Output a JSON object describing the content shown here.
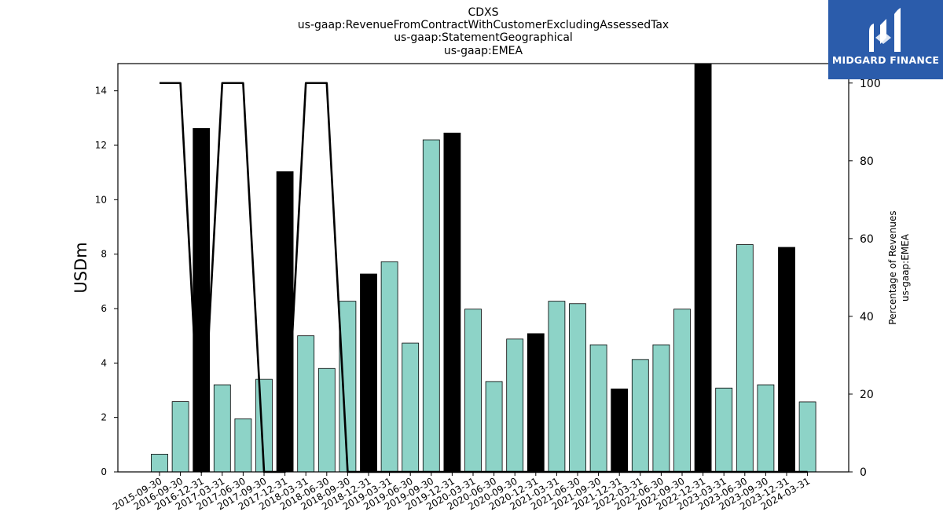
{
  "header": {
    "title_lines": [
      "CDXS",
      "us-gaap:RevenueFromContractWithCustomerExcludingAssessedTax",
      "us-gaap:StatementGeographical",
      "us-gaap:EMEA"
    ]
  },
  "logo": {
    "text": "MIDGARD FINANCE",
    "background": "#2b5cab",
    "icon": "midgard-logo-icon"
  },
  "chart_data": {
    "type": "bar",
    "title": "CDXS\nus-gaap:RevenueFromContractWithCustomerExcludingAssessedTax\nus-gaap:StatementGeographical\nus-gaap:EMEA",
    "ylabel": "USDm",
    "y2label": "Percentage of Revenues\nus-gaap:EMEA",
    "ylim": [
      0,
      15
    ],
    "y2lim": [
      0,
      105
    ],
    "yticks": [
      0,
      2,
      4,
      6,
      8,
      10,
      12,
      14
    ],
    "y2ticks": [
      0,
      20,
      40,
      60,
      80,
      100
    ],
    "grid": false,
    "categories": [
      "2015-09-30",
      "2016-09-30",
      "2016-12-31",
      "2017-03-31",
      "2017-06-30",
      "2017-09-30",
      "2017-12-31",
      "2018-03-31",
      "2018-06-30",
      "2018-09-30",
      "2018-12-31",
      "2019-03-31",
      "2019-06-30",
      "2019-09-30",
      "2019-12-31",
      "2020-03-31",
      "2020-06-30",
      "2020-09-30",
      "2020-12-31",
      "2021-03-31",
      "2021-06-30",
      "2021-09-30",
      "2021-12-31",
      "2022-03-31",
      "2022-06-30",
      "2022-09-30",
      "2022-12-31",
      "2023-03-31",
      "2023-06-30",
      "2023-09-30",
      "2023-12-31",
      "2024-03-31"
    ],
    "values": [
      0.65,
      2.58,
      12.62,
      3.2,
      1.95,
      3.4,
      11.03,
      5.0,
      3.8,
      6.27,
      7.27,
      7.72,
      4.73,
      12.2,
      12.45,
      5.98,
      3.32,
      4.88,
      5.08,
      6.27,
      6.18,
      4.67,
      3.05,
      4.13,
      4.67,
      5.98,
      15.0,
      3.08,
      8.35,
      3.2,
      8.25,
      2.57
    ],
    "highlight": [
      false,
      false,
      true,
      false,
      false,
      false,
      true,
      false,
      false,
      false,
      true,
      false,
      false,
      false,
      true,
      false,
      false,
      false,
      true,
      false,
      false,
      false,
      true,
      false,
      false,
      false,
      true,
      false,
      false,
      false,
      true,
      false
    ],
    "percentage_line": [
      100,
      100,
      0,
      100,
      100,
      0,
      0,
      100,
      100,
      0,
      0,
      0,
      0,
      0,
      0,
      0,
      0,
      0,
      0,
      0,
      0,
      0,
      0,
      0,
      0,
      0,
      0,
      0,
      0,
      0,
      0,
      0
    ],
    "colors": {
      "bar": "#8dd3c7",
      "highlight": "#000000",
      "line": "#000000"
    }
  }
}
